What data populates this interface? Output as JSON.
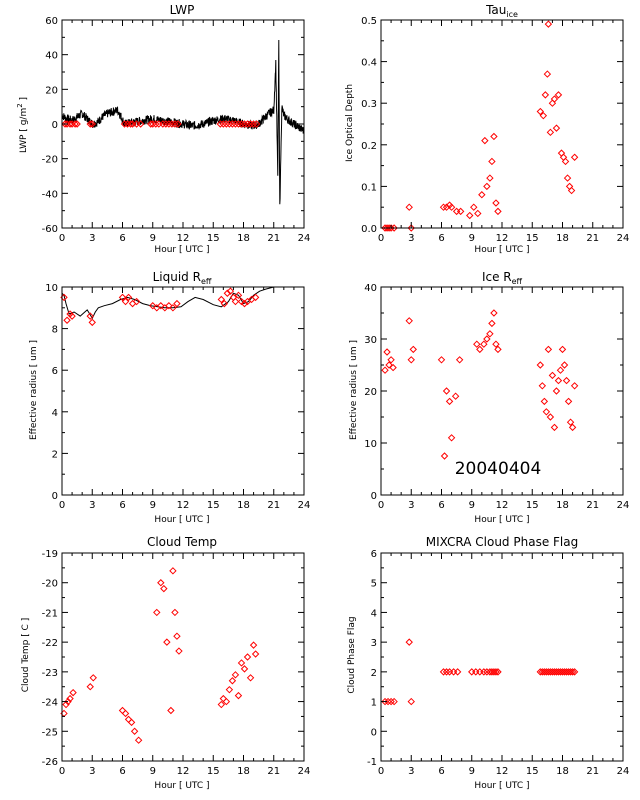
{
  "stamp": "20040404",
  "colors": {
    "line": "#000000",
    "marker": "#ff0000"
  },
  "chart_data": [
    {
      "id": "lwp",
      "type": "line",
      "title": "LWP",
      "title_sub": "",
      "xlabel_main": "Hour",
      "xlabel_unit": "UTC",
      "ylabel_main": "LWP",
      "ylabel_unit": "g/m",
      "ylabel_sup": "2",
      "xlim": [
        0,
        24
      ],
      "ylim": [
        -60,
        60
      ],
      "xticks": [
        0,
        3,
        6,
        9,
        12,
        15,
        18,
        21,
        24
      ],
      "yticks": [
        -60,
        -40,
        -20,
        0,
        20,
        40,
        60
      ],
      "ytick_labels": [
        "-60",
        "-40",
        "-20",
        "0",
        "20",
        "40",
        "60"
      ],
      "series": [
        {
          "kind": "line",
          "x": [
            0,
            0.5,
            1,
            1.5,
            2,
            2.5,
            3,
            3.5,
            4,
            4.5,
            5,
            5.5,
            5.8,
            6.2,
            7,
            8,
            9,
            10,
            11,
            12,
            13,
            14,
            15,
            16,
            17,
            18,
            19,
            19.5,
            20,
            20.5,
            21,
            21.2,
            21.4,
            21.5,
            21.6,
            21.8,
            22,
            22.5,
            23,
            23.5,
            24
          ],
          "y": [
            5,
            3,
            2,
            4,
            6,
            3,
            0,
            1,
            4,
            6,
            7,
            8,
            5,
            0,
            1,
            2,
            3,
            2,
            1,
            0,
            -1,
            0,
            2,
            3,
            2,
            0,
            -1,
            0,
            3,
            6,
            8,
            35,
            -30,
            46,
            -48,
            10,
            5,
            2,
            0,
            -2,
            -4
          ],
          "noise": 2.5
        },
        {
          "kind": "marker",
          "x": [
            0.3,
            0.5,
            0.8,
            1.0,
            1.3,
            1.5,
            2.8,
            3.0,
            6.2,
            6.5,
            6.8,
            7.0,
            7.4,
            7.8,
            8.8,
            9.0,
            9.3,
            9.6,
            10.0,
            10.3,
            10.6,
            10.9,
            11.2,
            11.5,
            15.7,
            16.0,
            16.3,
            16.6,
            16.9,
            17.2,
            17.5,
            17.8,
            18.1,
            18.4,
            18.7,
            19.0,
            19.3
          ],
          "y": [
            0,
            0,
            0,
            0,
            0,
            0,
            0,
            0,
            0,
            0,
            0,
            0,
            0,
            0,
            0,
            0,
            0,
            0,
            0,
            0,
            0,
            0,
            0,
            0,
            0,
            0,
            0,
            0,
            0,
            0,
            0,
            0,
            0,
            0,
            0,
            0,
            0
          ]
        }
      ]
    },
    {
      "id": "tau",
      "type": "scatter",
      "title": "Tau",
      "title_sub": "ice",
      "xlabel_main": "Hour",
      "xlabel_unit": "UTC",
      "ylabel_main": "Ice Optical Depth",
      "ylabel_unit": "",
      "ylabel_sup": "",
      "xlim": [
        0,
        24
      ],
      "ylim": [
        0,
        0.5
      ],
      "xticks": [
        0,
        3,
        6,
        9,
        12,
        15,
        18,
        21,
        24
      ],
      "yticks": [
        0,
        0.1,
        0.2,
        0.3,
        0.4,
        0.5
      ],
      "ytick_labels": [
        "0.0",
        "0.1",
        "0.2",
        "0.3",
        "0.4",
        "0.5"
      ],
      "series": [
        {
          "kind": "marker",
          "x": [
            0.4,
            0.6,
            0.8,
            1.0,
            1.3,
            2.8,
            3.0,
            6.2,
            6.5,
            6.8,
            7.0,
            7.5,
            7.9,
            8.8,
            9.2,
            9.6,
            10.0,
            10.3,
            10.5,
            10.8,
            11.0,
            11.2,
            11.4,
            11.6,
            15.8,
            16.1,
            16.3,
            16.5,
            16.6,
            16.8,
            17.0,
            17.2,
            17.4,
            17.6,
            17.9,
            18.1,
            18.3,
            18.5,
            18.7,
            18.9,
            19.2
          ],
          "y": [
            0,
            0,
            0,
            0,
            0,
            0.05,
            0,
            0.05,
            0.05,
            0.055,
            0.05,
            0.04,
            0.04,
            0.03,
            0.05,
            0.035,
            0.08,
            0.21,
            0.1,
            0.12,
            0.16,
            0.22,
            0.06,
            0.04,
            0.28,
            0.27,
            0.32,
            0.37,
            0.49,
            0.23,
            0.3,
            0.31,
            0.24,
            0.32,
            0.18,
            0.17,
            0.16,
            0.12,
            0.1,
            0.09,
            0.17
          ]
        }
      ]
    },
    {
      "id": "liqreff",
      "type": "line",
      "title": "Liquid R",
      "title_sub": "eff",
      "xlabel_main": "Hour",
      "xlabel_unit": "UTC",
      "ylabel_main": "Effective radius",
      "ylabel_unit": "um",
      "ylabel_sup": "",
      "xlim": [
        0,
        24
      ],
      "ylim": [
        0,
        10
      ],
      "xticks": [
        0,
        3,
        6,
        9,
        12,
        15,
        18,
        21,
        24
      ],
      "yticks": [
        0,
        2,
        4,
        6,
        8,
        10
      ],
      "ytick_labels": [
        "0",
        "2",
        "4",
        "6",
        "8",
        "10"
      ],
      "series": [
        {
          "kind": "line",
          "x": [
            0,
            0.2,
            0.4,
            0.7,
            1.2,
            1.8,
            2.5,
            3.0,
            3.3,
            3.6,
            4.2,
            5.0,
            5.8,
            6.5,
            7.2,
            8.0,
            8.8,
            9.5,
            10.2,
            11.0,
            11.8,
            12.5,
            13.2,
            14.0,
            15.0,
            15.8,
            16.5,
            17.0,
            17.5,
            18.0,
            18.5,
            19.0,
            19.6,
            20.2,
            21.0,
            22.0,
            23.0,
            24.0
          ],
          "y": [
            9.7,
            9.6,
            9.2,
            8.7,
            8.8,
            8.6,
            8.9,
            8.5,
            8.8,
            9.0,
            9.1,
            9.2,
            9.4,
            9.5,
            9.4,
            9.2,
            9.1,
            9.05,
            9.0,
            9.0,
            9.05,
            9.3,
            9.5,
            9.4,
            9.15,
            9.05,
            9.3,
            9.7,
            9.6,
            9.2,
            9.3,
            9.6,
            9.8,
            9.9,
            10.0,
            10.0,
            10.0,
            10.0
          ]
        },
        {
          "kind": "marker",
          "x": [
            0.2,
            0.5,
            0.8,
            1.0,
            2.8,
            3.0,
            6.0,
            6.3,
            6.6,
            7.0,
            7.4,
            9.0,
            9.4,
            9.8,
            10.2,
            10.6,
            11.0,
            11.4,
            15.8,
            16.1,
            16.4,
            16.7,
            17.0,
            17.2,
            17.5,
            17.8,
            18.1,
            18.4,
            18.8,
            19.2
          ],
          "y": [
            9.5,
            8.4,
            8.7,
            8.6,
            8.6,
            8.3,
            9.5,
            9.3,
            9.5,
            9.2,
            9.3,
            9.1,
            9.0,
            9.1,
            9.0,
            9.1,
            9.0,
            9.2,
            9.4,
            9.2,
            9.7,
            9.8,
            9.5,
            9.3,
            9.6,
            9.3,
            9.2,
            9.3,
            9.4,
            9.5
          ]
        }
      ]
    },
    {
      "id": "icereff",
      "type": "scatter",
      "title": "Ice R",
      "title_sub": "eff",
      "xlabel_main": "Hour",
      "xlabel_unit": "UTC",
      "ylabel_main": "Effective radius",
      "ylabel_unit": "um",
      "ylabel_sup": "",
      "xlim": [
        0,
        24
      ],
      "ylim": [
        0,
        40
      ],
      "xticks": [
        0,
        3,
        6,
        9,
        12,
        15,
        18,
        21,
        24
      ],
      "yticks": [
        0,
        10,
        20,
        30,
        40
      ],
      "ytick_labels": [
        "0",
        "10",
        "20",
        "30",
        "40"
      ],
      "series": [
        {
          "kind": "marker",
          "x": [
            0.4,
            0.6,
            0.8,
            1.0,
            1.2,
            2.8,
            3.0,
            3.2,
            6.0,
            6.3,
            6.5,
            6.8,
            7.0,
            7.4,
            7.8,
            9.5,
            9.8,
            10.2,
            10.5,
            10.8,
            11.0,
            11.2,
            11.4,
            11.6,
            15.8,
            16.0,
            16.2,
            16.4,
            16.6,
            16.8,
            17.0,
            17.2,
            17.4,
            17.6,
            17.8,
            18.0,
            18.2,
            18.4,
            18.6,
            18.8,
            19.0,
            19.2
          ],
          "y": [
            24,
            27.5,
            25,
            26,
            24.5,
            33.5,
            26,
            28,
            26,
            7.5,
            20,
            18,
            11,
            19,
            26,
            29,
            28,
            29,
            30,
            31,
            33,
            35,
            29,
            28,
            25,
            21,
            18,
            16,
            28,
            15,
            23,
            13,
            20,
            22,
            24,
            28,
            25,
            22,
            18,
            14,
            13,
            21
          ]
        }
      ]
    },
    {
      "id": "ctemp",
      "type": "scatter",
      "title": "Cloud Temp",
      "title_sub": "",
      "xlabel_main": "Hour",
      "xlabel_unit": "UTC",
      "ylabel_main": "Cloud Temp",
      "ylabel_unit": "C",
      "ylabel_sup": "",
      "xlim": [
        0,
        24
      ],
      "ylim": [
        -26,
        -19
      ],
      "xticks": [
        0,
        3,
        6,
        9,
        12,
        15,
        18,
        21,
        24
      ],
      "yticks": [
        -26,
        -25,
        -24,
        -23,
        -22,
        -21,
        -20,
        -19
      ],
      "ytick_labels": [
        "-26",
        "-25",
        "-24",
        "-23",
        "-22",
        "-21",
        "-20",
        "-19"
      ],
      "series": [
        {
          "kind": "marker",
          "x": [
            0.2,
            0.4,
            0.6,
            0.8,
            1.1,
            2.8,
            3.1,
            6.0,
            6.3,
            6.6,
            6.9,
            7.2,
            7.6,
            9.4,
            9.8,
            10.1,
            10.4,
            10.8,
            11.0,
            11.2,
            11.4,
            11.6,
            15.8,
            16.0,
            16.3,
            16.6,
            16.9,
            17.2,
            17.5,
            17.8,
            18.1,
            18.4,
            18.7,
            19.0,
            19.2
          ],
          "y": [
            -24.4,
            -24.1,
            -24.0,
            -23.9,
            -23.7,
            -23.5,
            -23.2,
            -24.3,
            -24.4,
            -24.6,
            -24.7,
            -25.0,
            -25.3,
            -21.0,
            -20.0,
            -20.2,
            -22.0,
            -24.3,
            -19.6,
            -21.0,
            -21.8,
            -22.3,
            -24.1,
            -23.9,
            -24.0,
            -23.6,
            -23.3,
            -23.1,
            -23.8,
            -22.7,
            -22.9,
            -22.5,
            -23.2,
            -22.1,
            -22.4
          ]
        }
      ]
    },
    {
      "id": "phase",
      "type": "scatter",
      "title": "MIXCRA Cloud Phase Flag",
      "title_sub": "",
      "xlabel_main": "Hour",
      "xlabel_unit": "UTC",
      "ylabel_main": "Cloud Phase Flag",
      "ylabel_unit": "",
      "ylabel_sup": "",
      "xlim": [
        0,
        24
      ],
      "ylim": [
        -1,
        6
      ],
      "xticks": [
        0,
        3,
        6,
        9,
        12,
        15,
        18,
        21,
        24
      ],
      "yticks": [
        -1,
        0,
        1,
        2,
        3,
        4,
        5,
        6
      ],
      "ytick_labels": [
        "-1",
        "0",
        "1",
        "2",
        "3",
        "4",
        "5",
        "6"
      ],
      "series": [
        {
          "kind": "marker",
          "x": [
            0.4,
            0.7,
            1.0,
            1.3,
            2.8,
            3.0,
            6.2,
            6.5,
            6.8,
            7.2,
            7.6,
            9.0,
            9.4,
            9.8,
            10.2,
            10.5,
            10.8,
            11.0,
            11.2,
            11.4,
            11.6,
            15.8,
            16.0,
            16.2,
            16.4,
            16.6,
            16.8,
            17.0,
            17.2,
            17.4,
            17.6,
            17.8,
            18.0,
            18.2,
            18.4,
            18.6,
            18.8,
            19.0,
            19.2
          ],
          "y": [
            1,
            1,
            1,
            1,
            3,
            1,
            2,
            2,
            2,
            2,
            2,
            2,
            2,
            2,
            2,
            2,
            2,
            2,
            2,
            2,
            2,
            2,
            2,
            2,
            2,
            2,
            2,
            2,
            2,
            2,
            2,
            2,
            2,
            2,
            2,
            2,
            2,
            2,
            2
          ]
        }
      ]
    }
  ]
}
